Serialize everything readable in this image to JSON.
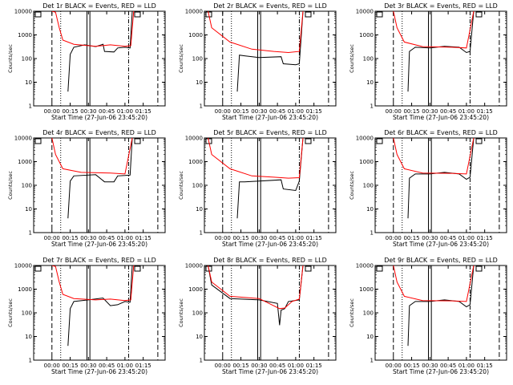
{
  "figure": {
    "ylabel": "Counts/sec",
    "xlabel": "Start Time (27-Jun-06 23:45:20)",
    "x_ticks": [
      "00:00",
      "00:15",
      "00:30",
      "00:45",
      "01:00",
      "01:15"
    ],
    "y_ticks": [
      "1",
      "10",
      "100",
      "1000",
      "10000"
    ],
    "colors": {
      "events": "#000000",
      "lld": "#ff0000"
    }
  },
  "chart_data": [
    {
      "type": "line",
      "title": "Det 1r BLACK = Events, RED = LLD",
      "xlim": [
        -0.25,
        1.55
      ],
      "ylim": [
        1,
        10000
      ],
      "yscale": "log",
      "x_unit": "hours after 23:45:20",
      "series": [
        {
          "name": "Events",
          "x": [
            0.22,
            0.25,
            0.3,
            0.45,
            0.6,
            0.7,
            0.72,
            0.85,
            0.9,
            1.0,
            1.07,
            1.1
          ],
          "y": [
            4,
            150,
            300,
            380,
            320,
            400,
            200,
            190,
            280,
            300,
            280,
            10000
          ]
        },
        {
          "name": "LLD",
          "x": [
            0,
            0.05,
            0.1,
            0.15,
            0.3,
            0.6,
            0.8,
            1.0,
            1.08,
            1.12
          ],
          "y": [
            10000,
            9000,
            2000,
            600,
            400,
            330,
            380,
            330,
            350,
            10000
          ]
        }
      ]
    },
    {
      "type": "line",
      "title": "Det 2r BLACK = Events, RED = LLD",
      "xlim": [
        -0.25,
        1.55
      ],
      "ylim": [
        1,
        10000
      ],
      "yscale": "log",
      "x_unit": "hours after 23:45:20",
      "series": [
        {
          "name": "Events",
          "x": [
            0.2,
            0.23,
            0.3,
            0.5,
            0.8,
            0.83,
            1.0,
            1.05,
            1.1
          ],
          "y": [
            4,
            140,
            130,
            110,
            120,
            60,
            55,
            60,
            10000
          ]
        },
        {
          "name": "LLD",
          "x": [
            -0.2,
            -0.15,
            0.1,
            0.4,
            0.7,
            0.9,
            1.05,
            1.1
          ],
          "y": [
            10000,
            2000,
            500,
            250,
            200,
            180,
            200,
            10000
          ]
        }
      ]
    },
    {
      "type": "line",
      "title": "Det 3r BLACK = Events, RED = LLD",
      "xlim": [
        -0.25,
        1.55
      ],
      "ylim": [
        1,
        10000
      ],
      "yscale": "log",
      "x_unit": "hours after 23:45:20",
      "series": [
        {
          "name": "Events",
          "x": [
            0.2,
            0.22,
            0.3,
            0.5,
            0.7,
            0.9,
            1.0,
            1.05,
            1.1
          ],
          "y": [
            4,
            200,
            300,
            280,
            330,
            300,
            180,
            200,
            10000
          ]
        },
        {
          "name": "LLD",
          "x": [
            0,
            0.05,
            0.15,
            0.4,
            0.8,
            1.0,
            1.1
          ],
          "y": [
            10000,
            2000,
            500,
            320,
            300,
            280,
            10000
          ]
        }
      ]
    },
    {
      "type": "line",
      "title": "Det 4r BLACK = Events, RED = LLD",
      "xlim": [
        -0.25,
        1.55
      ],
      "ylim": [
        1,
        10000
      ],
      "yscale": "log",
      "x_unit": "hours after 23:45:20",
      "series": [
        {
          "name": "Events",
          "x": [
            0.22,
            0.25,
            0.3,
            0.6,
            0.72,
            0.85,
            0.9,
            1.0,
            1.07,
            1.1
          ],
          "y": [
            4,
            150,
            250,
            280,
            140,
            140,
            250,
            260,
            270,
            10000
          ]
        },
        {
          "name": "LLD",
          "x": [
            0,
            0.05,
            0.15,
            0.4,
            0.8,
            1.0,
            1.1
          ],
          "y": [
            10000,
            2000,
            500,
            350,
            330,
            300,
            10000
          ]
        }
      ]
    },
    {
      "type": "line",
      "title": "Det 5r BLACK = Events, RED = LLD",
      "xlim": [
        -0.25,
        1.55
      ],
      "ylim": [
        1,
        10000
      ],
      "yscale": "log",
      "x_unit": "hours after 23:45:20",
      "series": [
        {
          "name": "Events",
          "x": [
            0.2,
            0.23,
            0.3,
            0.5,
            0.8,
            0.83,
            1.0,
            1.05,
            1.1
          ],
          "y": [
            4,
            140,
            140,
            150,
            170,
            70,
            60,
            150,
            10000
          ]
        },
        {
          "name": "LLD",
          "x": [
            -0.2,
            -0.15,
            0.1,
            0.4,
            0.7,
            0.9,
            1.05,
            1.1
          ],
          "y": [
            10000,
            2000,
            500,
            250,
            220,
            200,
            210,
            10000
          ]
        }
      ]
    },
    {
      "type": "line",
      "title": "Det 6r BLACK = Events, RED = LLD",
      "xlim": [
        -0.25,
        1.55
      ],
      "ylim": [
        1,
        10000
      ],
      "yscale": "log",
      "x_unit": "hours after 23:45:20",
      "series": [
        {
          "name": "Events",
          "x": [
            0.2,
            0.22,
            0.3,
            0.5,
            0.7,
            0.9,
            1.0,
            1.05,
            1.1
          ],
          "y": [
            4,
            200,
            300,
            300,
            350,
            300,
            180,
            220,
            10000
          ]
        },
        {
          "name": "LLD",
          "x": [
            0,
            0.05,
            0.15,
            0.4,
            0.8,
            1.0,
            1.1
          ],
          "y": [
            10000,
            2000,
            500,
            330,
            320,
            300,
            10000
          ]
        }
      ]
    },
    {
      "type": "line",
      "title": "Det 7r BLACK = Events, RED = LLD",
      "xlim": [
        -0.25,
        1.55
      ],
      "ylim": [
        1,
        10000
      ],
      "yscale": "log",
      "x_unit": "hours after 23:45:20",
      "series": [
        {
          "name": "Events",
          "x": [
            0.22,
            0.25,
            0.3,
            0.5,
            0.7,
            0.8,
            0.9,
            1.0,
            1.07,
            1.1
          ],
          "y": [
            4,
            150,
            300,
            350,
            420,
            200,
            220,
            300,
            280,
            10000
          ]
        },
        {
          "name": "LLD",
          "x": [
            0,
            0.05,
            0.1,
            0.15,
            0.3,
            0.6,
            0.8,
            1.0,
            1.08,
            1.12
          ],
          "y": [
            10000,
            9000,
            2000,
            600,
            400,
            350,
            380,
            330,
            350,
            10000
          ]
        }
      ]
    },
    {
      "type": "line",
      "title": "Det 8r BLACK = Events, RED = LLD",
      "xlim": [
        -0.25,
        1.55
      ],
      "ylim": [
        1,
        10000
      ],
      "yscale": "log",
      "x_unit": "hours after 23:45:20",
      "series": [
        {
          "name": "Events",
          "x": [
            -0.2,
            -0.15,
            0.1,
            0.5,
            0.75,
            0.78,
            0.8,
            0.85,
            0.9,
            1.05,
            1.1
          ],
          "y": [
            10000,
            1500,
            400,
            350,
            250,
            30,
            130,
            150,
            300,
            350,
            10000
          ]
        },
        {
          "name": "LLD",
          "x": [
            -0.2,
            -0.15,
            0.1,
            0.5,
            0.78,
            0.85,
            0.95,
            1.05,
            1.1
          ],
          "y": [
            10000,
            2000,
            500,
            400,
            150,
            160,
            300,
            380,
            10000
          ]
        }
      ]
    },
    {
      "type": "line",
      "title": "Det 9r BLACK = Events, RED = LLD",
      "xlim": [
        -0.25,
        1.55
      ],
      "ylim": [
        1,
        10000
      ],
      "yscale": "log",
      "x_unit": "hours after 23:45:20",
      "series": [
        {
          "name": "Events",
          "x": [
            0.2,
            0.22,
            0.3,
            0.5,
            0.7,
            0.9,
            1.0,
            1.05,
            1.1
          ],
          "y": [
            4,
            200,
            300,
            300,
            350,
            300,
            180,
            220,
            10000
          ]
        },
        {
          "name": "LLD",
          "x": [
            0,
            0.05,
            0.15,
            0.4,
            0.8,
            1.0,
            1.1
          ],
          "y": [
            10000,
            2000,
            500,
            330,
            320,
            300,
            10000
          ]
        }
      ]
    }
  ]
}
